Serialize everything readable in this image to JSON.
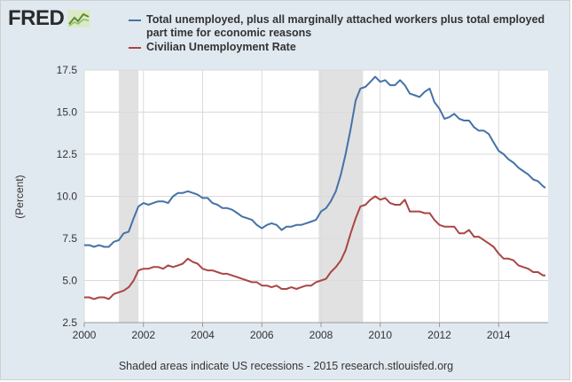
{
  "brand": {
    "name": "FRED"
  },
  "footer": {
    "note": "Shaded areas indicate US recessions - 2015 research.stlouisfed.org"
  },
  "colors": {
    "background": "#e1e9f0",
    "plot_area": "#ffffff",
    "recession": "#e1e1e1",
    "grid": "#dadada",
    "series_u6": "#4572a7",
    "series_u3": "#aa4643"
  },
  "chart_data": {
    "type": "line",
    "title": "",
    "xlabel": "",
    "ylabel": "(Percent)",
    "xlim": [
      2000,
      2015.67
    ],
    "ylim": [
      2.5,
      17.5
    ],
    "x_ticks": [
      "2000",
      "2002",
      "2004",
      "2006",
      "2008",
      "2010",
      "2012",
      "2014"
    ],
    "y_ticks": [
      "2.5",
      "5.0",
      "7.5",
      "10.0",
      "12.5",
      "15.0",
      "17.5"
    ],
    "grid": true,
    "legend_position": "top",
    "recessions": [
      [
        2001.17,
        2001.83
      ],
      [
        2007.92,
        2009.42
      ]
    ],
    "series": [
      {
        "name": "Total unemployed, plus all marginally attached workers plus total employed part time for economic reasons",
        "color": "#4572a7",
        "x": [
          2000.0,
          2000.17,
          2000.33,
          2000.5,
          2000.67,
          2000.83,
          2001.0,
          2001.17,
          2001.33,
          2001.5,
          2001.67,
          2001.83,
          2002.0,
          2002.17,
          2002.33,
          2002.5,
          2002.67,
          2002.83,
          2003.0,
          2003.17,
          2003.33,
          2003.5,
          2003.67,
          2003.83,
          2004.0,
          2004.17,
          2004.33,
          2004.5,
          2004.67,
          2004.83,
          2005.0,
          2005.17,
          2005.33,
          2005.5,
          2005.67,
          2005.83,
          2006.0,
          2006.17,
          2006.33,
          2006.5,
          2006.67,
          2006.83,
          2007.0,
          2007.17,
          2007.33,
          2007.5,
          2007.67,
          2007.83,
          2008.0,
          2008.17,
          2008.33,
          2008.5,
          2008.67,
          2008.83,
          2009.0,
          2009.17,
          2009.33,
          2009.5,
          2009.67,
          2009.83,
          2010.0,
          2010.17,
          2010.33,
          2010.5,
          2010.67,
          2010.83,
          2011.0,
          2011.17,
          2011.33,
          2011.5,
          2011.67,
          2011.83,
          2012.0,
          2012.17,
          2012.33,
          2012.5,
          2012.67,
          2012.83,
          2013.0,
          2013.17,
          2013.33,
          2013.5,
          2013.67,
          2013.83,
          2014.0,
          2014.17,
          2014.33,
          2014.5,
          2014.67,
          2014.83,
          2015.0,
          2015.17,
          2015.33,
          2015.5,
          2015.58
        ],
        "values": [
          7.1,
          7.1,
          7.0,
          7.1,
          7.0,
          7.0,
          7.3,
          7.4,
          7.8,
          7.9,
          8.7,
          9.4,
          9.6,
          9.5,
          9.6,
          9.7,
          9.7,
          9.6,
          10.0,
          10.2,
          10.2,
          10.3,
          10.2,
          10.1,
          9.9,
          9.9,
          9.6,
          9.5,
          9.3,
          9.3,
          9.2,
          9.0,
          8.8,
          8.7,
          8.6,
          8.3,
          8.1,
          8.3,
          8.4,
          8.3,
          8.0,
          8.2,
          8.2,
          8.3,
          8.3,
          8.4,
          8.5,
          8.6,
          9.1,
          9.3,
          9.7,
          10.3,
          11.3,
          12.5,
          14.0,
          15.7,
          16.4,
          16.5,
          16.8,
          17.1,
          16.8,
          16.9,
          16.6,
          16.6,
          16.9,
          16.6,
          16.1,
          16.0,
          15.9,
          16.2,
          16.4,
          15.6,
          15.2,
          14.6,
          14.7,
          14.9,
          14.6,
          14.5,
          14.5,
          14.1,
          13.9,
          13.9,
          13.7,
          13.2,
          12.7,
          12.5,
          12.2,
          12.0,
          11.7,
          11.5,
          11.3,
          11.0,
          10.9,
          10.6,
          10.5
        ]
      },
      {
        "name": "Civilian Unemployment Rate",
        "color": "#aa4643",
        "x": [
          2000.0,
          2000.17,
          2000.33,
          2000.5,
          2000.67,
          2000.83,
          2001.0,
          2001.17,
          2001.33,
          2001.5,
          2001.67,
          2001.83,
          2002.0,
          2002.17,
          2002.33,
          2002.5,
          2002.67,
          2002.83,
          2003.0,
          2003.17,
          2003.33,
          2003.5,
          2003.67,
          2003.83,
          2004.0,
          2004.17,
          2004.33,
          2004.5,
          2004.67,
          2004.83,
          2005.0,
          2005.17,
          2005.33,
          2005.5,
          2005.67,
          2005.83,
          2006.0,
          2006.17,
          2006.33,
          2006.5,
          2006.67,
          2006.83,
          2007.0,
          2007.17,
          2007.33,
          2007.5,
          2007.67,
          2007.83,
          2008.0,
          2008.17,
          2008.33,
          2008.5,
          2008.67,
          2008.83,
          2009.0,
          2009.17,
          2009.33,
          2009.5,
          2009.67,
          2009.83,
          2010.0,
          2010.17,
          2010.33,
          2010.5,
          2010.67,
          2010.83,
          2011.0,
          2011.17,
          2011.33,
          2011.5,
          2011.67,
          2011.83,
          2012.0,
          2012.17,
          2012.33,
          2012.5,
          2012.67,
          2012.83,
          2013.0,
          2013.17,
          2013.33,
          2013.5,
          2013.67,
          2013.83,
          2014.0,
          2014.17,
          2014.33,
          2014.5,
          2014.67,
          2014.83,
          2015.0,
          2015.17,
          2015.33,
          2015.5,
          2015.58
        ],
        "values": [
          4.0,
          4.0,
          3.9,
          4.0,
          4.0,
          3.9,
          4.2,
          4.3,
          4.4,
          4.6,
          5.0,
          5.6,
          5.7,
          5.7,
          5.8,
          5.8,
          5.7,
          5.9,
          5.8,
          5.9,
          6.0,
          6.3,
          6.1,
          6.0,
          5.7,
          5.6,
          5.6,
          5.5,
          5.4,
          5.4,
          5.3,
          5.2,
          5.1,
          5.0,
          4.9,
          4.9,
          4.7,
          4.7,
          4.6,
          4.7,
          4.5,
          4.5,
          4.6,
          4.5,
          4.6,
          4.7,
          4.7,
          4.9,
          5.0,
          5.1,
          5.5,
          5.8,
          6.2,
          6.8,
          7.8,
          8.7,
          9.4,
          9.5,
          9.8,
          10.0,
          9.8,
          9.9,
          9.6,
          9.5,
          9.5,
          9.8,
          9.1,
          9.1,
          9.1,
          9.0,
          9.0,
          8.6,
          8.3,
          8.2,
          8.2,
          8.2,
          7.8,
          7.8,
          8.0,
          7.6,
          7.6,
          7.4,
          7.2,
          7.0,
          6.6,
          6.3,
          6.3,
          6.2,
          5.9,
          5.8,
          5.7,
          5.5,
          5.5,
          5.3,
          5.3
        ]
      }
    ]
  }
}
